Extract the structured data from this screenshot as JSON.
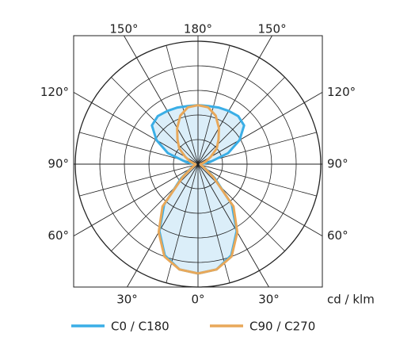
{
  "chart_data": {
    "type": "polar",
    "unit_label": "cd / klm",
    "angles": [
      0,
      10,
      20,
      30,
      40,
      50,
      60,
      70,
      80,
      90,
      100,
      110,
      120,
      130,
      140,
      150,
      160,
      170,
      180
    ],
    "angle_ticks": [
      {
        "value": 0,
        "label": "0°"
      },
      {
        "value": 30,
        "label": "30°"
      },
      {
        "value": 60,
        "label": "60°"
      },
      {
        "value": 90,
        "label": "90°"
      },
      {
        "value": 120,
        "label": "120°"
      },
      {
        "value": 150,
        "label": "150°"
      },
      {
        "value": 180,
        "label": "180°"
      }
    ],
    "rlim": [
      0,
      5
    ],
    "rticks": [
      1,
      2,
      3,
      4,
      5
    ],
    "series": [
      {
        "name": "C0 / C180",
        "color": "#3aaee6",
        "fill": "#d5ebf8",
        "values": [
          4.45,
          4.35,
          3.95,
          3.15,
          2.15,
          0.9,
          0.35,
          0.15,
          0.1,
          0.1,
          0.5,
          1.3,
          1.95,
          2.45,
          2.55,
          2.5,
          2.45,
          2.4,
          2.4
        ]
      },
      {
        "name": "C90 / C270",
        "color": "#e8a85a",
        "values": [
          4.45,
          4.35,
          4.0,
          3.2,
          2.25,
          0.8,
          0.3,
          0.15,
          0.1,
          0.1,
          0.2,
          0.35,
          0.6,
          1.0,
          1.3,
          1.7,
          2.1,
          2.35,
          2.4
        ]
      }
    ]
  }
}
